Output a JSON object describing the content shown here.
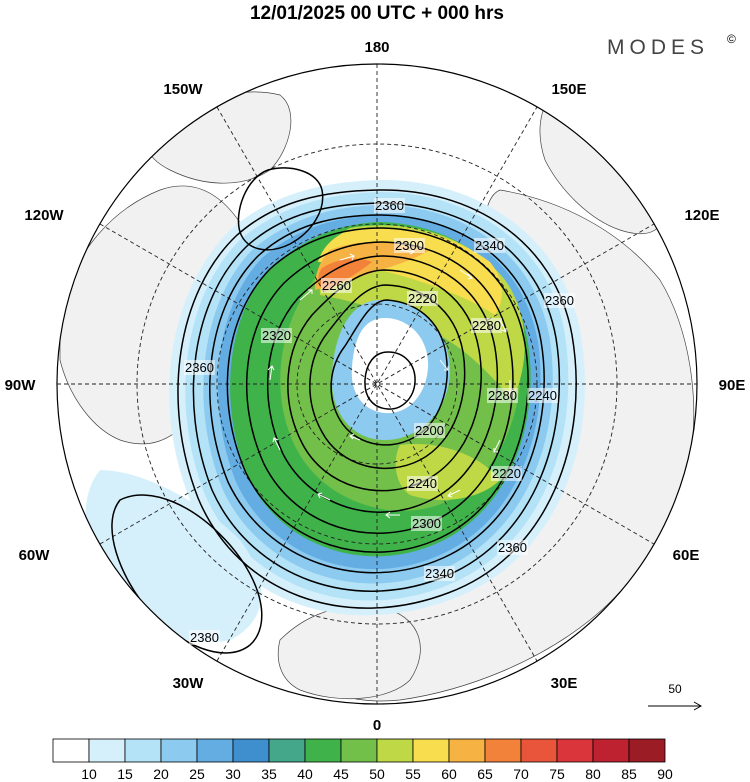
{
  "title": "12/01/2025  00 UTC  + 000 hrs",
  "brand": "MODES",
  "brand_mark": "©",
  "longitude_labels": {
    "top": "180",
    "bottom": "0",
    "left": "90W",
    "right": "90E",
    "upper_left_1": "150W",
    "upper_left_2": "120W",
    "lower_left_1": "60W",
    "lower_left_2": "30W",
    "upper_right_1": "150E",
    "upper_right_2": "120E",
    "lower_right_1": "60E",
    "lower_right_2": "30E"
  },
  "contour_labels": [
    "2360",
    "2300",
    "2340",
    "2260",
    "2220",
    "2280",
    "2360",
    "2320",
    "2360",
    "2200",
    "2280",
    "2240",
    "2240",
    "2220",
    "2300",
    "2340",
    "2360",
    "2380"
  ],
  "vector_reference": "50",
  "colorbar": {
    "levels": [
      "10",
      "15",
      "20",
      "25",
      "30",
      "35",
      "40",
      "45",
      "50",
      "55",
      "60",
      "65",
      "70",
      "75",
      "80",
      "85",
      "90"
    ],
    "colors": [
      "#ffffff",
      "#d6f0fb",
      "#b4e2f7",
      "#8ccaef",
      "#63ade3",
      "#3f8fcf",
      "#44a789",
      "#3fb34a",
      "#72c04a",
      "#bfd845",
      "#f8dd4e",
      "#f6b344",
      "#f2823a",
      "#e8553a",
      "#d9353a",
      "#be2230",
      "#9c1c26"
    ]
  }
}
